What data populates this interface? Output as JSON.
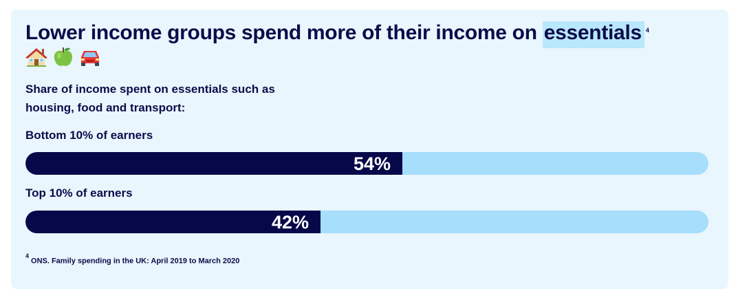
{
  "header": {
    "title_main": "Lower income groups spend more of their income on ",
    "title_highlight": "essentials",
    "title_ref": "4",
    "icons": [
      "house-icon",
      "apple-icon",
      "car-icon"
    ]
  },
  "subtitle": "Share of income spent on essentials such as housing, food and transport:",
  "colors": {
    "card_bg": "#e9f6fd",
    "bar_fill": "#070849",
    "bar_track": "#a6defb",
    "highlight": "#b9e7fb"
  },
  "chart_data": {
    "type": "bar",
    "orientation": "horizontal",
    "title": "Share of income spent on essentials such as housing, food and transport:",
    "categories": [
      "Bottom 10% of earners",
      "Top 10% of earners"
    ],
    "values": [
      54,
      42
    ],
    "value_labels": [
      "54%",
      "42%"
    ],
    "unit": "%",
    "xlim": [
      0,
      100
    ],
    "grid": false
  },
  "footnote": {
    "ref": "4",
    "text": "ONS. Family spending in the UK: April 2019 to March 2020"
  }
}
